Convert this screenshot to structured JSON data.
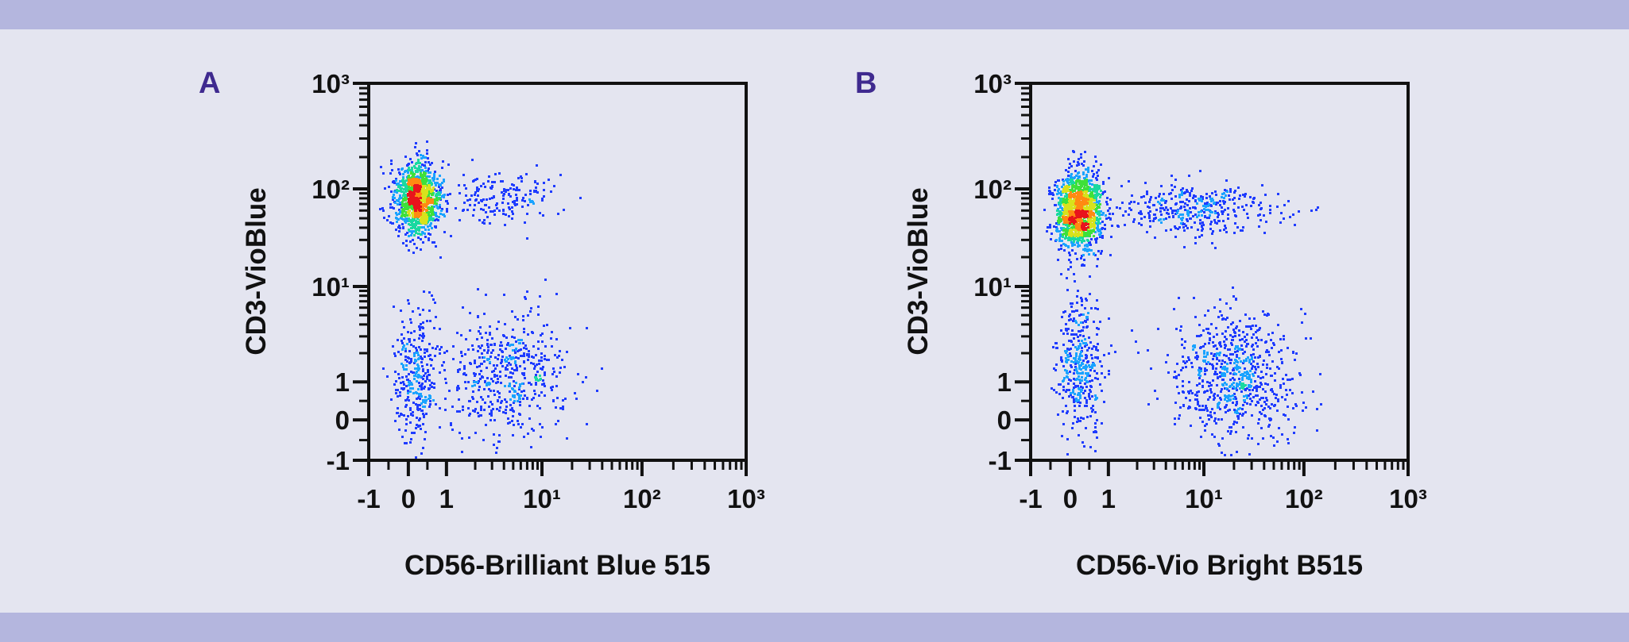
{
  "colors": {
    "band": "#b4b6de",
    "background": "#e4e5f0",
    "panel_letter": "#3f2a8f",
    "density_scale": [
      "#1f3cff",
      "#1aa3ff",
      "#19d9a0",
      "#3ee03a",
      "#d8e21c",
      "#ff8a12",
      "#e8141c"
    ]
  },
  "chart_data": [
    {
      "type": "scatter",
      "panel_label": "A",
      "xlabel": "CD56-Brilliant Blue 515",
      "ylabel": "CD3-VioBlue",
      "x_scale": "biexponential",
      "y_scale": "biexponential",
      "xlim": [
        -1,
        1000
      ],
      "ylim": [
        -1,
        1000
      ],
      "x_ticks": [
        -1,
        0,
        1,
        10,
        100,
        1000
      ],
      "x_tick_labels": [
        "-1",
        "0",
        "1",
        "10¹",
        "10²",
        "10³"
      ],
      "y_ticks": [
        -1,
        0,
        1,
        10,
        100,
        1000
      ],
      "y_tick_labels": [
        "-1",
        "0",
        "1",
        "10¹",
        "10²",
        "10³"
      ],
      "grid": false,
      "coloring": "density",
      "populations": [
        {
          "x_center": 0.2,
          "x_range": [
            -0.4,
            0.8
          ],
          "y_center": 80,
          "y_range": [
            35,
            200
          ],
          "events": 1100
        },
        {
          "x_center": 4,
          "x_range": [
            0.8,
            15
          ],
          "y_center": 85,
          "y_range": [
            45,
            160
          ],
          "events": 170
        },
        {
          "x_center": 0.2,
          "x_range": [
            -0.4,
            0.8
          ],
          "y_center": 1.2,
          "y_range": [
            -1,
            4
          ],
          "events": 320
        },
        {
          "x_center": 4,
          "x_range": [
            0.9,
            16
          ],
          "y_center": 1.2,
          "y_range": [
            -1,
            3.5
          ],
          "events": 520
        }
      ]
    },
    {
      "type": "scatter",
      "panel_label": "B",
      "xlabel": "CD56-Vio Bright B515",
      "ylabel": "CD3-VioBlue",
      "x_scale": "biexponential",
      "y_scale": "biexponential",
      "xlim": [
        -1,
        1000
      ],
      "ylim": [
        -1,
        1000
      ],
      "x_ticks": [
        -1,
        0,
        1,
        10,
        100,
        1000
      ],
      "x_tick_labels": [
        "-1",
        "0",
        "1",
        "10¹",
        "10²",
        "10³"
      ],
      "y_ticks": [
        -1,
        0,
        1,
        10,
        100,
        1000
      ],
      "y_tick_labels": [
        "-1",
        "0",
        "1",
        "10¹",
        "10²",
        "10³"
      ],
      "grid": false,
      "coloring": "density",
      "populations": [
        {
          "x_center": 0.2,
          "x_range": [
            -0.4,
            0.8
          ],
          "y_center": 60,
          "y_range": [
            25,
            150
          ],
          "events": 1300
        },
        {
          "x_center": 8,
          "x_range": [
            0.8,
            50
          ],
          "y_center": 62,
          "y_range": [
            35,
            110
          ],
          "events": 380
        },
        {
          "x_center": 0.2,
          "x_range": [
            -0.4,
            0.8
          ],
          "y_center": 1.5,
          "y_range": [
            -1,
            4.5
          ],
          "events": 380
        },
        {
          "x_center": 20,
          "x_range": [
            4,
            70
          ],
          "y_center": 1.2,
          "y_range": [
            -1,
            3.5
          ],
          "events": 720
        }
      ]
    }
  ]
}
